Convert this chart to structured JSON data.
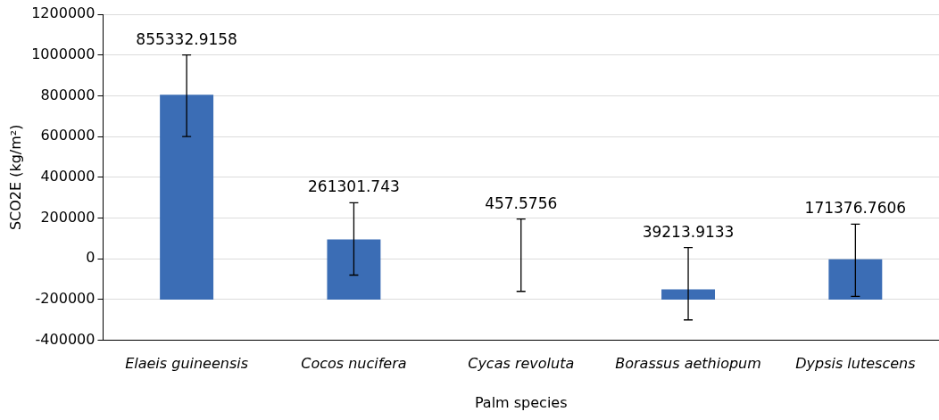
{
  "chart_data": {
    "type": "bar",
    "categories": [
      "Elaeis guineensis",
      "Cocos nucifera",
      "Cycas revoluta",
      "Borassus aethiopum",
      "Dypsis lutescens"
    ],
    "base": [
      -200000,
      -200000,
      null,
      -200000,
      -200000
    ],
    "values": [
      1005000,
      295000,
      0,
      50000,
      200000
    ],
    "errors": [
      [
        600000,
        1000000
      ],
      [
        -80000,
        275000
      ],
      [
        -160000,
        195000
      ],
      [
        -300000,
        55000
      ],
      [
        -185000,
        170000
      ]
    ],
    "annotations": [
      "855332.9158",
      "261301.743",
      "457.5756",
      "39213.9133",
      "171376.7606"
    ],
    "color": "#3b6db5",
    "xlabel": "Palm species",
    "ylabel": "SCO2E (kg/m²)",
    "ylim": [
      -400000,
      1200000
    ],
    "yticks": [
      -400000,
      -200000,
      0,
      200000,
      400000,
      600000,
      800000,
      1000000,
      1200000
    ],
    "grid": "y",
    "legend": false
  }
}
